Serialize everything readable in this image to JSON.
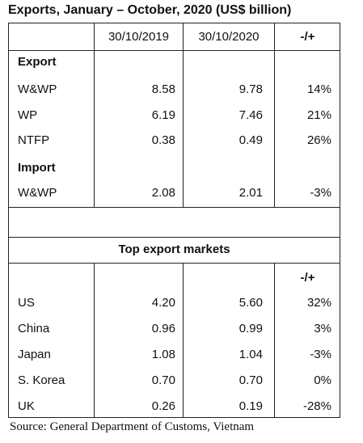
{
  "title": "Exports,  January – October, 2020 (US$ billion)",
  "header": {
    "col1": "30/10/2019",
    "col2": "30/10/2020",
    "col3": "-/+"
  },
  "export_label": "Export",
  "export_rows": [
    {
      "name": "W&WP",
      "v2019": "8.58",
      "v2020": "9.78",
      "change": "14%"
    },
    {
      "name": "WP",
      "v2019": "6.19",
      "v2020": "7.46",
      "change": "21%"
    },
    {
      "name": "NTFP",
      "v2019": "0.38",
      "v2020": "0.49",
      "change": "26%"
    }
  ],
  "import_label": "Import",
  "import_rows": [
    {
      "name": "W&WP",
      "v2019": "2.08",
      "v2020": "2.01",
      "change": "-3%"
    }
  ],
  "markets_title": "Top export markets",
  "markets_change_header": "-/+",
  "market_rows": [
    {
      "name": "US",
      "v2019": "4.20",
      "v2020": "5.60",
      "change": "32%"
    },
    {
      "name": "China",
      "v2019": "0.96",
      "v2020": "0.99",
      "change": "3%"
    },
    {
      "name": "Japan",
      "v2019": "1.08",
      "v2020": "1.04",
      "change": "-3%"
    },
    {
      "name": "S. Korea",
      "v2019": "0.70",
      "v2020": "0.70",
      "change": "0%"
    },
    {
      "name": "UK",
      "v2019": "0.26",
      "v2020": "0.19",
      "change": "-28%"
    }
  ],
  "source": "Source: General Department of Customs, Vietnam"
}
